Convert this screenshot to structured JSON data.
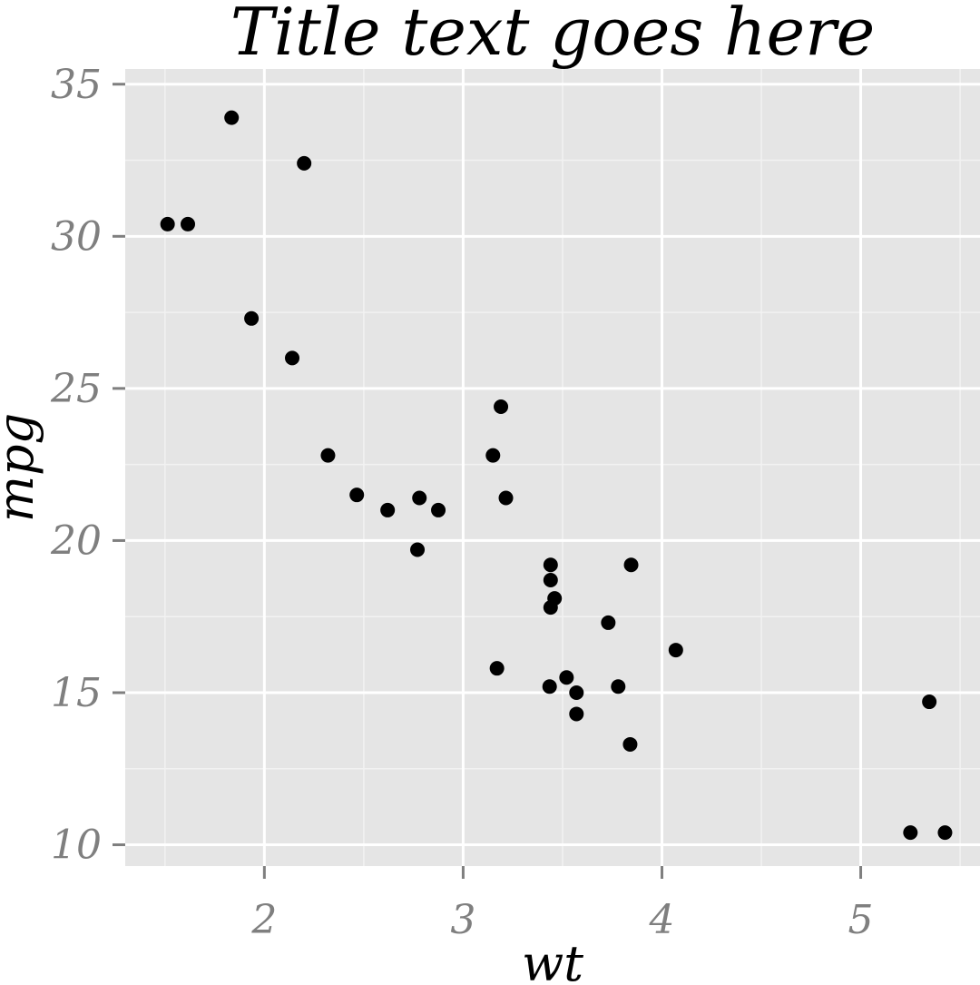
{
  "chart_data": {
    "type": "scatter",
    "title": "Title text goes here",
    "xlabel": "wt",
    "ylabel": "mpg",
    "xlim": [
      1.3,
      5.6
    ],
    "ylim": [
      9.3,
      35.5
    ],
    "x_ticks": [
      2,
      3,
      4,
      5
    ],
    "y_ticks": [
      10,
      15,
      20,
      25,
      30,
      35
    ],
    "x_minor_ticks": [
      1.5,
      2.5,
      3.5,
      4.5,
      5.5
    ],
    "y_minor_ticks": [
      12.5,
      17.5,
      22.5,
      27.5,
      32.5
    ],
    "grid": true,
    "colors": {
      "panel_background": "#e5e5e5",
      "major_grid": "#ffffff",
      "minor_grid": "#f2f2f2",
      "point": "#000000",
      "tick_label": "#7f7f7f"
    },
    "points": [
      {
        "x": 2.62,
        "y": 21.0
      },
      {
        "x": 2.875,
        "y": 21.0
      },
      {
        "x": 2.32,
        "y": 22.8
      },
      {
        "x": 3.215,
        "y": 21.4
      },
      {
        "x": 3.44,
        "y": 18.7
      },
      {
        "x": 3.46,
        "y": 18.1
      },
      {
        "x": 3.57,
        "y": 14.3
      },
      {
        "x": 3.19,
        "y": 24.4
      },
      {
        "x": 3.15,
        "y": 22.8
      },
      {
        "x": 3.44,
        "y": 19.2
      },
      {
        "x": 3.44,
        "y": 17.8
      },
      {
        "x": 4.07,
        "y": 16.4
      },
      {
        "x": 3.73,
        "y": 17.3
      },
      {
        "x": 3.78,
        "y": 15.2
      },
      {
        "x": 5.25,
        "y": 10.4
      },
      {
        "x": 5.424,
        "y": 10.4
      },
      {
        "x": 5.345,
        "y": 14.7
      },
      {
        "x": 2.2,
        "y": 32.4
      },
      {
        "x": 1.615,
        "y": 30.4
      },
      {
        "x": 1.835,
        "y": 33.9
      },
      {
        "x": 2.465,
        "y": 21.5
      },
      {
        "x": 3.52,
        "y": 15.5
      },
      {
        "x": 3.435,
        "y": 15.2
      },
      {
        "x": 3.84,
        "y": 13.3
      },
      {
        "x": 3.845,
        "y": 19.2
      },
      {
        "x": 1.935,
        "y": 27.3
      },
      {
        "x": 2.14,
        "y": 26.0
      },
      {
        "x": 1.513,
        "y": 30.4
      },
      {
        "x": 3.17,
        "y": 15.8
      },
      {
        "x": 2.77,
        "y": 19.7
      },
      {
        "x": 3.57,
        "y": 15.0
      },
      {
        "x": 2.78,
        "y": 21.4
      }
    ]
  }
}
